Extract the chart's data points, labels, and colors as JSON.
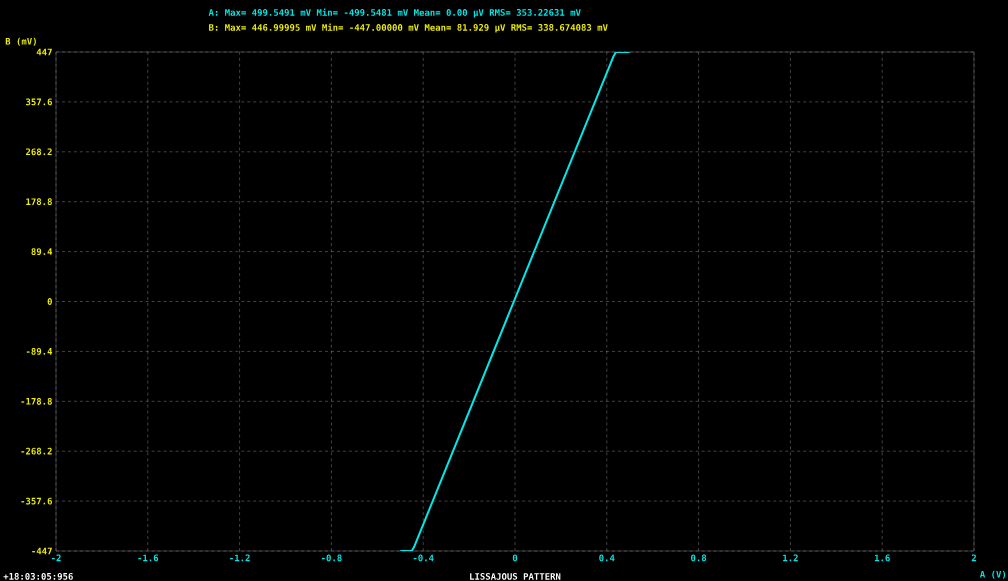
{
  "chart_data": {
    "type": "line",
    "title": "LISSAJOUS PATTERN",
    "xlabel": "A (V)",
    "ylabel": "B (mV)",
    "annotations": [
      "A: Max= 499.5491 mV Min= -499.5481 mV Mean= 0.00 µV RMS= 353.22631 mV",
      "B: Max= 446.99995 mV Min= -447.00000 mV Mean= 81.929 µV RMS= 338.674083 mV",
      "+18:03:05:956"
    ],
    "series": [
      {
        "color": "#00e8e8",
        "x": [
          -0.5,
          -0.45,
          -0.44,
          0.43,
          0.44,
          0.5
        ],
        "values": [
          -447,
          -447,
          -440,
          440,
          447,
          447
        ]
      }
    ],
    "xlim": [
      -2,
      2
    ],
    "xticks": [
      -2,
      -1.6,
      -1.2,
      -0.8,
      -0.4,
      0,
      0.4,
      0.8,
      1.2,
      1.6,
      2
    ],
    "ylim": [
      -447,
      447
    ],
    "yticks": [
      -447,
      -357.6,
      -268.2,
      -178.8,
      -89.4,
      0,
      89.4,
      178.8,
      268.2,
      357.6,
      447
    ],
    "grid": true,
    "marker": "none",
    "line_style": "solid"
  }
}
